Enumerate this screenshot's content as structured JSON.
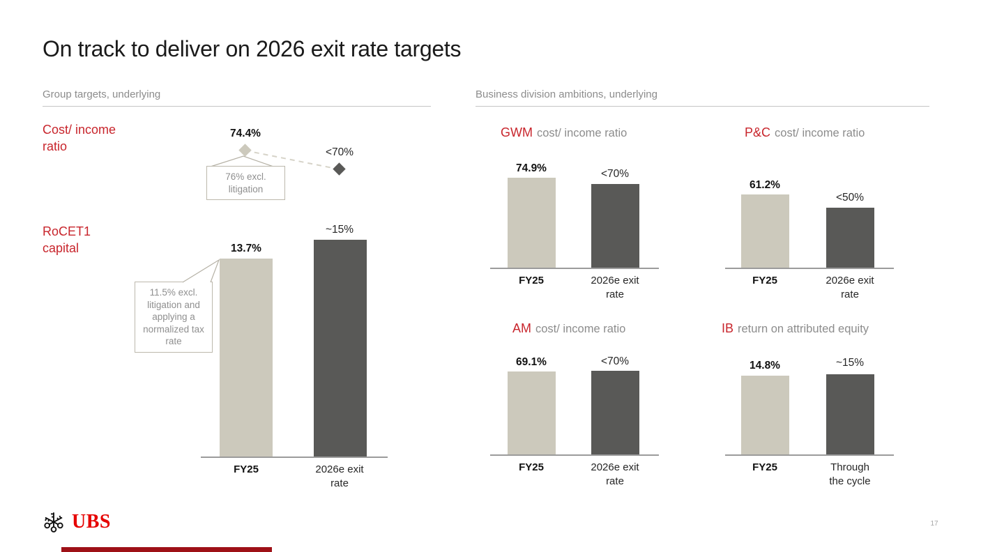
{
  "slide": {
    "title": "On track to deliver on 2026 exit rate targets",
    "page_number": "17",
    "logo_text": "UBS"
  },
  "sections": {
    "left_header": "Group targets, underlying",
    "right_header": "Business division ambitions, underlying"
  },
  "group_targets": {
    "row1_label": "Cost/ income ratio",
    "row2_label": "RoCET1 capital"
  },
  "colors": {
    "ubs_logo_red": "#e60100",
    "accent_red": "#c8252c",
    "bar_beige": "#ccc9bc",
    "bar_dark": "#595957",
    "text_gray": "#8c8c8c",
    "progress_red": "#9e1117"
  },
  "chart_data": [
    {
      "id": "group-cost-income",
      "type": "scatter",
      "title": "Cost/ income ratio",
      "categories": [
        "FY25",
        "2026e exit rate"
      ],
      "values": [
        74.4,
        70
      ],
      "value_labels": [
        "74.4%",
        "<70%"
      ],
      "annotation": "76% excl. litigation",
      "marker": "diamond",
      "connector": "dashed"
    },
    {
      "id": "group-rocet1",
      "type": "bar",
      "title": "RoCET1 capital",
      "categories": [
        "FY25",
        "2026e exit rate"
      ],
      "values": [
        13.7,
        15
      ],
      "value_labels": [
        "13.7%",
        "~15%"
      ],
      "annotation": "11.5% excl. litigation and applying a normalized tax rate",
      "ylim": [
        0,
        16
      ]
    },
    {
      "id": "gwm-cost-income",
      "type": "bar",
      "division": "GWM",
      "metric": "cost/ income ratio",
      "title": "GWM cost/ income ratio",
      "categories": [
        "FY25",
        "2026e exit rate"
      ],
      "values": [
        74.9,
        70
      ],
      "value_labels": [
        "74.9%",
        "<70%"
      ],
      "ylim": [
        0,
        80
      ]
    },
    {
      "id": "pc-cost-income",
      "type": "bar",
      "division": "P&C",
      "metric": "cost/ income ratio",
      "title": "P&C cost/ income ratio",
      "categories": [
        "FY25",
        "2026e exit rate"
      ],
      "values": [
        61.2,
        50
      ],
      "value_labels": [
        "61.2%",
        "<50%"
      ],
      "ylim": [
        0,
        80
      ]
    },
    {
      "id": "am-cost-income",
      "type": "bar",
      "division": "AM",
      "metric": "cost/ income ratio",
      "title": "AM cost/ income ratio",
      "categories": [
        "FY25",
        "2026e exit rate"
      ],
      "values": [
        69.1,
        70
      ],
      "value_labels": [
        "69.1%",
        "<70%"
      ],
      "ylim": [
        0,
        80
      ]
    },
    {
      "id": "ib-roae",
      "type": "bar",
      "division": "IB",
      "metric": "return on attributed equity",
      "title": "IB return on attributed equity",
      "categories": [
        "FY25",
        "Through the cycle"
      ],
      "values": [
        14.8,
        15
      ],
      "value_labels": [
        "14.8%",
        "~15%"
      ],
      "ylim": [
        0,
        17
      ]
    }
  ]
}
